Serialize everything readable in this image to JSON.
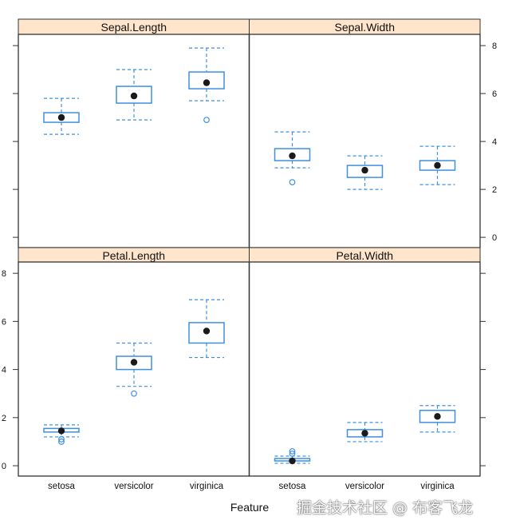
{
  "chart_data": {
    "type": "boxplot",
    "xlabel": "Feature",
    "ylabel": "",
    "ylim": [
      -0.43,
      8.47
    ],
    "yticks": [
      0,
      2,
      4,
      6,
      8
    ],
    "categories": [
      "setosa",
      "versicolor",
      "virginica"
    ],
    "colors": {
      "box": "#3e8fe0",
      "strip": "#ffe5cc",
      "dot": "#1a1a1a",
      "frame": "#333333"
    },
    "panels": [
      {
        "title": "Sepal.Length",
        "boxes": [
          {
            "lo": 4.3,
            "q1": 4.8,
            "med": 5.0,
            "q3": 5.2,
            "hi": 5.8,
            "out": []
          },
          {
            "lo": 4.9,
            "q1": 5.6,
            "med": 5.9,
            "q3": 6.3,
            "hi": 7.0,
            "out": []
          },
          {
            "lo": 5.7,
            "q1": 6.2,
            "med": 6.45,
            "q3": 6.9,
            "hi": 7.9,
            "out": [
              4.9
            ]
          }
        ]
      },
      {
        "title": "Sepal.Width",
        "boxes": [
          {
            "lo": 2.9,
            "q1": 3.2,
            "med": 3.4,
            "q3": 3.7,
            "hi": 4.4,
            "out": [
              2.3
            ]
          },
          {
            "lo": 2.0,
            "q1": 2.5,
            "med": 2.8,
            "q3": 3.0,
            "hi": 3.4,
            "out": []
          },
          {
            "lo": 2.2,
            "q1": 2.8,
            "med": 3.0,
            "q3": 3.2,
            "hi": 3.8,
            "out": []
          }
        ]
      },
      {
        "title": "Petal.Length",
        "boxes": [
          {
            "lo": 1.2,
            "q1": 1.4,
            "med": 1.45,
            "q3": 1.55,
            "hi": 1.7,
            "out": [
              1.0,
              1.1
            ]
          },
          {
            "lo": 3.3,
            "q1": 4.0,
            "med": 4.3,
            "q3": 4.55,
            "hi": 5.1,
            "out": [
              3.0
            ]
          },
          {
            "lo": 4.5,
            "q1": 5.1,
            "med": 5.6,
            "q3": 5.95,
            "hi": 6.9,
            "out": []
          }
        ]
      },
      {
        "title": "Petal.Width",
        "boxes": [
          {
            "lo": 0.1,
            "q1": 0.2,
            "med": 0.2,
            "q3": 0.3,
            "hi": 0.4,
            "out": [
              0.5,
              0.6
            ]
          },
          {
            "lo": 1.0,
            "q1": 1.2,
            "med": 1.35,
            "q3": 1.5,
            "hi": 1.8,
            "out": []
          },
          {
            "lo": 1.4,
            "q1": 1.8,
            "med": 2.05,
            "q3": 2.3,
            "hi": 2.5,
            "out": []
          }
        ]
      }
    ]
  },
  "watermark": "掘金技术社区 @ 布客飞龙"
}
